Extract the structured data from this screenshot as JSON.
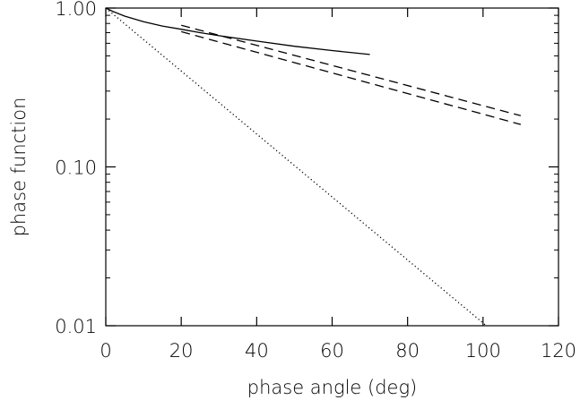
{
  "chart_data": {
    "type": "line",
    "xlabel": "phase angle (deg)",
    "ylabel": "phase function",
    "xlim": [
      0,
      120
    ],
    "ylim": [
      0.01,
      1.0
    ],
    "yscale": "log",
    "grid": false,
    "x_ticks": [
      0,
      20,
      40,
      60,
      80,
      100,
      120
    ],
    "x_tick_labels": [
      "0",
      "20",
      "40",
      "60",
      "80",
      "100",
      "120"
    ],
    "y_ticks": [
      0.01,
      0.1,
      1.0
    ],
    "y_tick_labels": [
      "0.01",
      "0.10",
      "1.00"
    ],
    "series": [
      {
        "style": "solid",
        "x": [
          0,
          2,
          5,
          10,
          15,
          20,
          25,
          30,
          40,
          50,
          60,
          70
        ],
        "y": [
          1.0,
          0.95,
          0.89,
          0.82,
          0.77,
          0.735,
          0.7,
          0.67,
          0.62,
          0.575,
          0.54,
          0.51
        ]
      },
      {
        "style": "dashed",
        "x": [
          20,
          110
        ],
        "y": [
          0.78,
          0.21
        ]
      },
      {
        "style": "dashed",
        "x": [
          20,
          110
        ],
        "y": [
          0.71,
          0.185
        ]
      },
      {
        "style": "dotted",
        "x": [
          0,
          102
        ],
        "y": [
          1.0,
          0.0095
        ]
      }
    ]
  }
}
